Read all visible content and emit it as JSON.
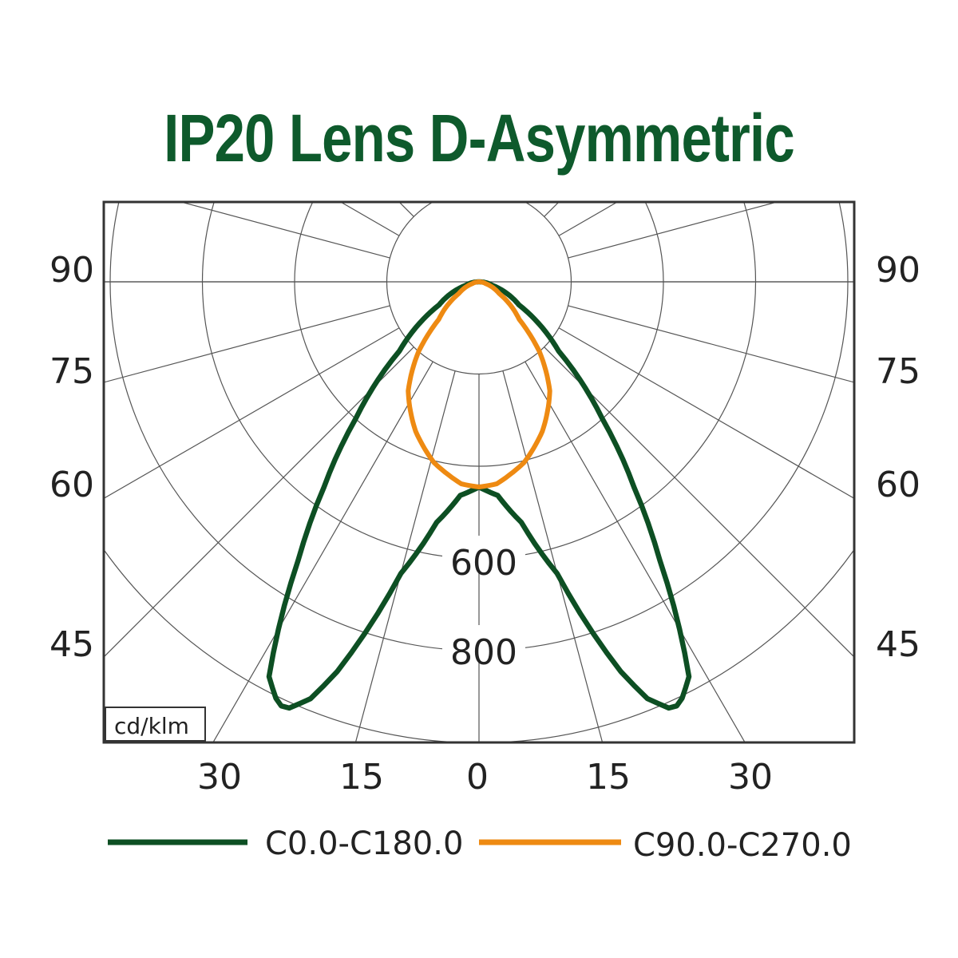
{
  "chart_data": {
    "type": "polar",
    "title": "IP20 Lens D-Asymmetric",
    "unit_label": "cd/klm",
    "radial_ticks": [
      200,
      400,
      600,
      800,
      1000
    ],
    "radial_tick_labels": [
      "600",
      "800"
    ],
    "angle_step": 15,
    "side_angle_labels": [
      "90",
      "75",
      "60",
      "45"
    ],
    "bottom_angle_labels": [
      "30",
      "15",
      "0",
      "15",
      "30"
    ],
    "series": [
      {
        "name": "C0.0-C180.0",
        "color": "#0d4f23",
        "angles": [
          0,
          5,
          10,
          15,
          20,
          22,
          24,
          25,
          26,
          28,
          30,
          33,
          37,
          42,
          49,
          60,
          75,
          90
        ],
        "values": [
          445,
          465,
          530,
          655,
          900,
          975,
          1012,
          1015,
          1005,
          970,
          870,
          720,
          560,
          400,
          229,
          100,
          30,
          0
        ]
      },
      {
        "name": "C90.0-C270.0",
        "color": "#ee8a12",
        "angles": [
          0,
          5,
          14,
          23,
          33,
          41,
          47,
          60,
          75,
          90
        ],
        "values": [
          445,
          440,
          404,
          352,
          282,
          199,
          119,
          50,
          15,
          0
        ]
      }
    ]
  }
}
